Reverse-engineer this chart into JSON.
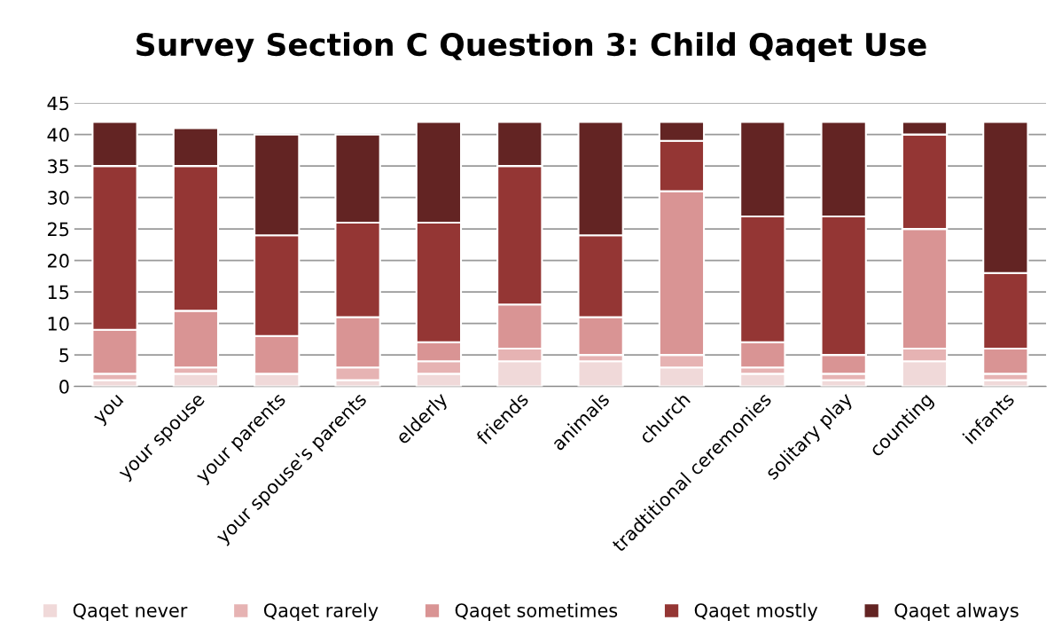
{
  "chart_data": {
    "type": "bar",
    "title": "Survey Section C Question 3: Child Qaqet Use",
    "stacked": true,
    "categories": [
      "you",
      "your spouse",
      "your parents",
      "your spouse's parents",
      "elderly",
      "friends",
      "animals",
      "church",
      "tradtitional ceremonies",
      "solitary play",
      "counting",
      "infants"
    ],
    "series": [
      {
        "name": "Qaqet never",
        "color": "#f0d9d9",
        "values": [
          1,
          2,
          2,
          1,
          2,
          4,
          4,
          3,
          2,
          1,
          4,
          1
        ]
      },
      {
        "name": "Qaqet rarely",
        "color": "#e6b3b3",
        "values": [
          1,
          1,
          0,
          2,
          2,
          2,
          1,
          2,
          1,
          1,
          2,
          1
        ]
      },
      {
        "name": "Qaqet sometimes",
        "color": "#d99494",
        "values": [
          7,
          9,
          6,
          8,
          3,
          7,
          6,
          26,
          4,
          3,
          19,
          4
        ]
      },
      {
        "name": "Qaqet mostly",
        "color": "#943634",
        "values": [
          26,
          23,
          16,
          15,
          19,
          22,
          13,
          8,
          20,
          22,
          15,
          12
        ]
      },
      {
        "name": "Qaqet always",
        "color": "#632423",
        "values": [
          7,
          6,
          16,
          14,
          16,
          7,
          18,
          3,
          15,
          15,
          2,
          24
        ]
      }
    ],
    "ylim": [
      0,
      45
    ],
    "yticks": [
      0,
      5,
      10,
      15,
      20,
      25,
      30,
      35,
      40,
      45
    ],
    "grid": "y",
    "legend": "bottom"
  }
}
